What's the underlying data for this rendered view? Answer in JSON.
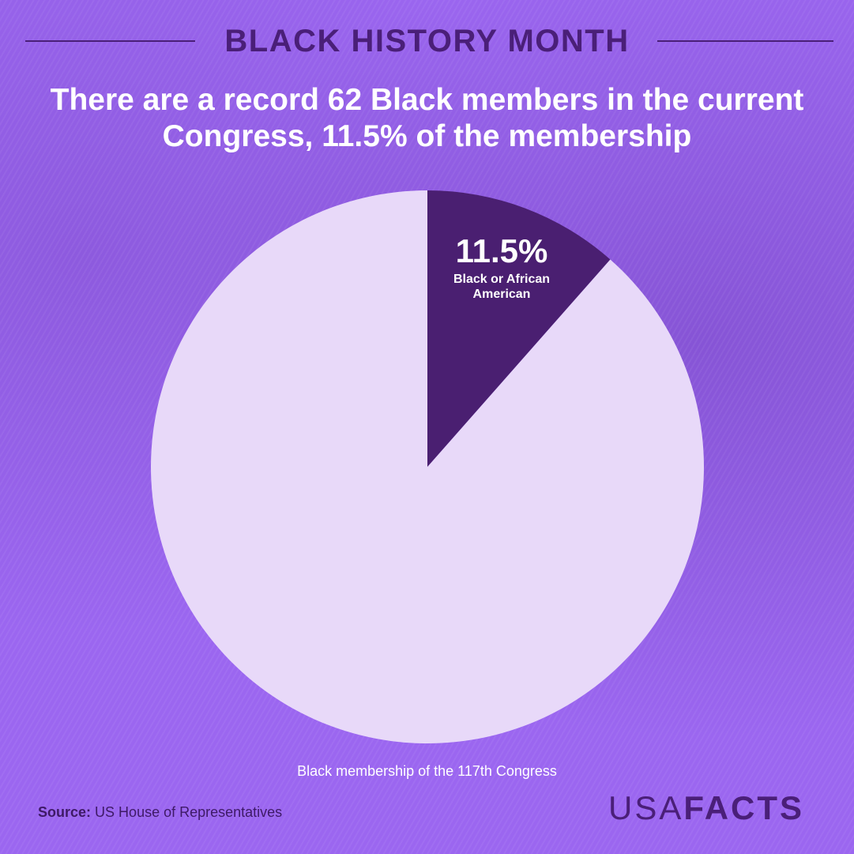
{
  "header": {
    "section": "BLACK HISTORY MONTH",
    "title": "There are a record 62 Black members in the current Congress, 11.5% of the membership"
  },
  "chart_data": {
    "type": "pie",
    "slices": [
      {
        "label": "Black or African American",
        "value": 11.5,
        "display": "11.5%",
        "color": "#4a1f71"
      },
      {
        "label": "",
        "value": 88.5,
        "display": "",
        "color": "#e8d9f9"
      }
    ],
    "caption": "Black membership of the 117th Congress"
  },
  "footer": {
    "source_label": "Source:",
    "source_text": "US House of Representatives",
    "logo_light": "USA",
    "logo_bold": "FACTS"
  },
  "colors": {
    "background": "#9b66f0",
    "accent_dark": "#4a1f71",
    "slice_light": "#e8d9f9"
  }
}
